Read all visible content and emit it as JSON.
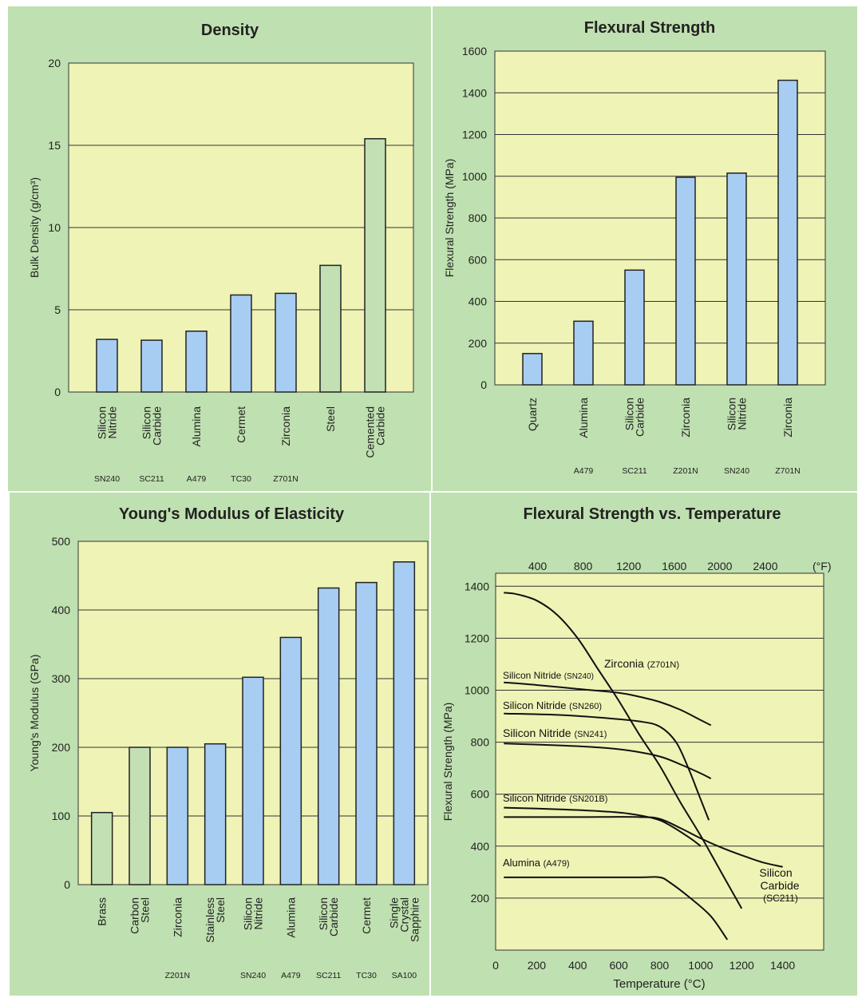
{
  "chart_data": [
    {
      "type": "bar",
      "title": "Density",
      "ylabel": "Bulk Density (g/cm³)",
      "ylim": [
        0,
        20
      ],
      "yticks": [
        0,
        5,
        10,
        15,
        20
      ],
      "grid": true,
      "colors": {
        "ceramic": "#a8cdf2",
        "metal": "#c3e0b4",
        "plot_bg": "#eff3b5",
        "panel_bg": "#bfe0b0"
      },
      "categories": [
        {
          "name": [
            "Silicon",
            "Nitride"
          ],
          "code": "SN240",
          "value": 3.2,
          "group": "ceramic"
        },
        {
          "name": [
            "Silicon",
            "Carbide"
          ],
          "code": "SC211",
          "value": 3.15,
          "group": "ceramic"
        },
        {
          "name": [
            "Alumina"
          ],
          "code": "A479",
          "value": 3.7,
          "group": "ceramic"
        },
        {
          "name": [
            "Cermet"
          ],
          "code": "TC30",
          "value": 5.9,
          "group": "ceramic"
        },
        {
          "name": [
            "Zirconia"
          ],
          "code": "Z701N",
          "value": 6.0,
          "group": "ceramic"
        },
        {
          "name": [
            "Steel"
          ],
          "code": "",
          "value": 7.7,
          "group": "metal"
        },
        {
          "name": [
            "Cemented",
            "Carbide"
          ],
          "code": "",
          "value": 15.4,
          "group": "metal"
        }
      ]
    },
    {
      "type": "bar",
      "title": "Flexural Strength",
      "ylabel": "Flexural Strength (MPa)",
      "ylim": [
        0,
        1600
      ],
      "yticks": [
        0,
        200,
        400,
        600,
        800,
        1000,
        1200,
        1400,
        1600
      ],
      "grid": true,
      "categories": [
        {
          "name": [
            "Quartz"
          ],
          "code": "",
          "value": 150,
          "group": "ceramic"
        },
        {
          "name": [
            "Alumina"
          ],
          "code": "A479",
          "value": 305,
          "group": "ceramic"
        },
        {
          "name": [
            "Silicon",
            "Carbide"
          ],
          "code": "SC211",
          "value": 550,
          "group": "ceramic"
        },
        {
          "name": [
            "Zirconia"
          ],
          "code": "Z201N",
          "value": 995,
          "group": "ceramic"
        },
        {
          "name": [
            "Silicon",
            "Nitride"
          ],
          "code": "SN240",
          "value": 1015,
          "group": "ceramic"
        },
        {
          "name": [
            "Zirconia"
          ],
          "code": "Z701N",
          "value": 1460,
          "group": "ceramic"
        }
      ]
    },
    {
      "type": "bar",
      "title": "Young's Modulus of Elasticity",
      "ylabel": "Young's Modulus (GPa)",
      "ylim": [
        0,
        500
      ],
      "yticks": [
        0,
        100,
        200,
        300,
        400,
        500
      ],
      "grid": true,
      "categories": [
        {
          "name": [
            "Brass"
          ],
          "code": "",
          "value": 105,
          "group": "metal"
        },
        {
          "name": [
            "Carbon",
            "Steel"
          ],
          "code": "",
          "value": 200,
          "group": "metal"
        },
        {
          "name": [
            "Zirconia"
          ],
          "code": "Z201N",
          "value": 200,
          "group": "ceramic"
        },
        {
          "name": [
            "Stainless",
            "Steel"
          ],
          "code": "",
          "value": 205,
          "group": "ceramic"
        },
        {
          "name": [
            "Silicon",
            "Nitride"
          ],
          "code": "SN240",
          "value": 302,
          "group": "ceramic"
        },
        {
          "name": [
            "Alumina"
          ],
          "code": "A479",
          "value": 360,
          "group": "ceramic"
        },
        {
          "name": [
            "Silicon",
            "Carbide"
          ],
          "code": "SC211",
          "value": 432,
          "group": "ceramic"
        },
        {
          "name": [
            "Cermet"
          ],
          "code": "TC30",
          "value": 440,
          "group": "ceramic"
        },
        {
          "name": [
            "Single",
            "Crystal",
            "Sapphire"
          ],
          "code": "SA100",
          "value": 470,
          "group": "ceramic"
        }
      ]
    },
    {
      "type": "line",
      "title": "Flexural Strength vs. Temperature",
      "xlabel": "Temperature (°C)",
      "ylabel": "Flexural Strength (MPa)",
      "xlim": [
        0,
        1600
      ],
      "ylim": [
        0,
        1450
      ],
      "xticks": [
        0,
        200,
        400,
        600,
        800,
        1000,
        1200,
        1400
      ],
      "yticks": [
        200,
        400,
        600,
        800,
        1000,
        1200,
        1400
      ],
      "top_axis_label": "(°F)",
      "top_ticks": [
        400,
        800,
        1200,
        1600,
        2000,
        2400
      ],
      "grid": true,
      "series": [
        {
          "label": [
            "Zirconia ",
            "(Z701N)"
          ],
          "points": [
            [
              40,
              1375
            ],
            [
              100,
              1370
            ],
            [
              200,
              1345
            ],
            [
              300,
              1290
            ],
            [
              400,
              1200
            ],
            [
              500,
              1080
            ],
            [
              600,
              960
            ],
            [
              700,
              830
            ],
            [
              800,
              710
            ],
            [
              900,
              570
            ],
            [
              1000,
              440
            ],
            [
              1100,
              300
            ],
            [
              1200,
              160
            ]
          ]
        },
        {
          "label": [
            "Silicon Nitride ",
            "(SN240)"
          ],
          "points": [
            [
              40,
              1030
            ],
            [
              200,
              1020
            ],
            [
              400,
              1005
            ],
            [
              600,
              990
            ],
            [
              700,
              975
            ],
            [
              800,
              955
            ],
            [
              900,
              925
            ],
            [
              1000,
              885
            ],
            [
              1050,
              865
            ]
          ]
        },
        {
          "label": [
            "Silicon Nitride ",
            "(SN260)"
          ],
          "points": [
            [
              40,
              910
            ],
            [
              300,
              905
            ],
            [
              500,
              895
            ],
            [
              700,
              880
            ],
            [
              800,
              860
            ],
            [
              880,
              800
            ],
            [
              940,
              700
            ],
            [
              990,
              600
            ],
            [
              1040,
              500
            ]
          ]
        },
        {
          "label": [
            "Silicon Nitride ",
            "(SN241)"
          ],
          "points": [
            [
              40,
              795
            ],
            [
              300,
              788
            ],
            [
              500,
              780
            ],
            [
              650,
              768
            ],
            [
              800,
              745
            ],
            [
              900,
              715
            ],
            [
              1000,
              680
            ],
            [
              1050,
              660
            ]
          ]
        },
        {
          "label": [
            "Silicon Nitride ",
            "(SN201B)"
          ],
          "points": [
            [
              40,
              548
            ],
            [
              300,
              542
            ],
            [
              500,
              535
            ],
            [
              650,
              525
            ],
            [
              780,
              505
            ],
            [
              850,
              480
            ],
            [
              950,
              430
            ],
            [
              1000,
              400
            ]
          ]
        },
        {
          "label": [
            "Silicon",
            "Carbide",
            "(SC211)"
          ],
          "points": [
            [
              40,
              512
            ],
            [
              400,
              512
            ],
            [
              700,
              512
            ],
            [
              800,
              505
            ],
            [
              900,
              470
            ],
            [
              1000,
              430
            ],
            [
              1100,
              395
            ],
            [
              1200,
              365
            ],
            [
              1300,
              338
            ],
            [
              1400,
              320
            ]
          ]
        },
        {
          "label": [
            "Alumina ",
            "(A479)"
          ],
          "points": [
            [
              40,
              280
            ],
            [
              400,
              280
            ],
            [
              700,
              280
            ],
            [
              800,
              280
            ],
            [
              850,
              260
            ],
            [
              950,
              200
            ],
            [
              1050,
              130
            ],
            [
              1130,
              40
            ]
          ]
        }
      ]
    }
  ]
}
